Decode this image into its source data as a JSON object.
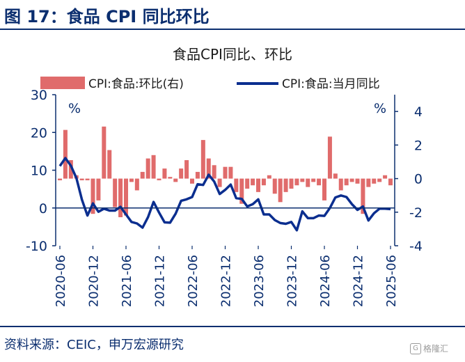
{
  "figure_title": "图 17：食品 CPI 同比环比",
  "source": "资料来源：CEIC，申万宏源研究",
  "logo_text": "格隆汇",
  "colors": {
    "bar": "#e06b6b",
    "line": "#0b2e8f",
    "axis": "#0b2e6f",
    "title": "#0b2e6f"
  },
  "chart_data": {
    "type": "bar+line",
    "title": "食品CPI同比、环比",
    "legend": {
      "placement": "top",
      "bar_label": "CPI:食品:环比(右)",
      "line_label": "CPI:食品:当月同比"
    },
    "left_axis": {
      "unit": "%",
      "ylim": [
        -10,
        30
      ],
      "ticks": [
        -10,
        0,
        10,
        20,
        30
      ]
    },
    "right_axis": {
      "unit": "%",
      "ylim": [
        -4,
        5
      ],
      "ticks": [
        -4,
        -2,
        0,
        2,
        4
      ]
    },
    "x_tick_labels": [
      "2020-06",
      "2020-12",
      "2021-06",
      "2021-12",
      "2022-06",
      "2022-12",
      "2023-06",
      "2023-12",
      "2024-06",
      "2024-12",
      "2025-06"
    ],
    "x_tick_indices": [
      0,
      6,
      12,
      18,
      24,
      30,
      36,
      42,
      48,
      54,
      60
    ],
    "months": [
      "2020-06",
      "2020-07",
      "2020-08",
      "2020-09",
      "2020-10",
      "2020-11",
      "2020-12",
      "2021-01",
      "2021-02",
      "2021-03",
      "2021-04",
      "2021-05",
      "2021-06",
      "2021-07",
      "2021-08",
      "2021-09",
      "2021-10",
      "2021-11",
      "2021-12",
      "2022-01",
      "2022-02",
      "2022-03",
      "2022-04",
      "2022-05",
      "2022-06",
      "2022-07",
      "2022-08",
      "2022-09",
      "2022-10",
      "2022-11",
      "2022-12",
      "2023-01",
      "2023-02",
      "2023-03",
      "2023-04",
      "2023-05",
      "2023-06",
      "2023-07",
      "2023-08",
      "2023-09",
      "2023-10",
      "2023-11",
      "2023-12",
      "2024-01",
      "2024-02",
      "2024-03",
      "2024-04",
      "2024-05",
      "2024-06",
      "2024-07",
      "2024-08",
      "2024-09",
      "2024-10",
      "2024-11",
      "2024-12",
      "2025-01",
      "2025-02",
      "2025-03",
      "2025-04",
      "2025-05",
      "2025-06"
    ],
    "series": [
      {
        "name": "CPI:食品:环比(右)",
        "type": "bar",
        "axis": "right",
        "values": [
          -0.1,
          2.9,
          1.1,
          0.2,
          -0.1,
          -0.1,
          -2.1,
          -1.3,
          3.1,
          1.7,
          -1.7,
          -2.3,
          -2.2,
          -0.2,
          -0.7,
          0.4,
          1.2,
          1.4,
          -0.1,
          0.6,
          0.1,
          -0.2,
          0.6,
          1.1,
          -0.3,
          0.4,
          2.3,
          1.2,
          0.8,
          -0.5,
          0.7,
          0.7,
          -0.8,
          -1.5,
          -0.6,
          -0.4,
          -0.8,
          -0.4,
          0.2,
          -0.9,
          -1.4,
          -0.8,
          -0.6,
          -0.4,
          -0.2,
          -0.5,
          -0.2,
          -0.4,
          -1.3,
          2.5,
          0.3,
          -0.7,
          -0.4,
          -0.2,
          -0.3,
          -2.1,
          -0.5,
          -0.3,
          -0.2,
          0.2,
          -0.4
        ]
      },
      {
        "name": "CPI:食品:当月同比",
        "type": "line",
        "axis": "left",
        "values": [
          11.1,
          13.2,
          11.2,
          7.9,
          2.2,
          -2.0,
          1.2,
          -1.0,
          -0.2,
          -0.7,
          -0.7,
          0.3,
          -1.7,
          -3.7,
          -4.1,
          -5.2,
          -2.4,
          1.6,
          -1.2,
          -3.8,
          -3.9,
          -1.5,
          1.9,
          2.3,
          2.9,
          6.3,
          6.1,
          8.8,
          7.0,
          3.7,
          4.8,
          6.2,
          2.6,
          2.4,
          0.4,
          1.0,
          2.3,
          -1.7,
          -1.7,
          -3.2,
          -4.0,
          -4.2,
          -3.7,
          -5.9,
          -0.9,
          -2.7,
          -2.7,
          -2.0,
          -2.1,
          0.0,
          2.8,
          3.3,
          2.9,
          1.0,
          -0.5,
          0.4,
          -3.3,
          -1.4,
          -0.2,
          -0.2,
          -0.3
        ]
      }
    ]
  }
}
